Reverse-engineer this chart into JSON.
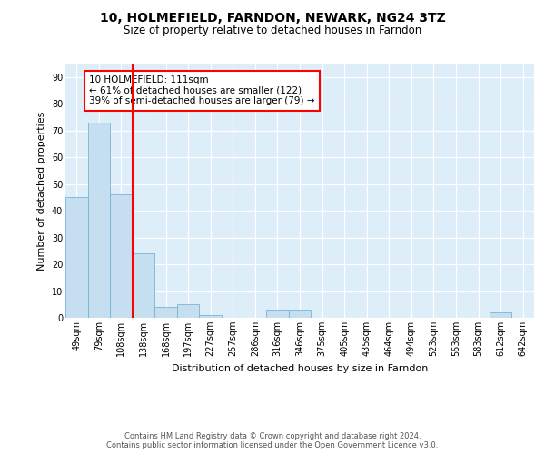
{
  "title": "10, HOLMEFIELD, FARNDON, NEWARK, NG24 3TZ",
  "subtitle": "Size of property relative to detached houses in Farndon",
  "xlabel": "Distribution of detached houses by size in Farndon",
  "ylabel": "Number of detached properties",
  "bin_labels": [
    "49sqm",
    "79sqm",
    "108sqm",
    "138sqm",
    "168sqm",
    "197sqm",
    "227sqm",
    "257sqm",
    "286sqm",
    "316sqm",
    "346sqm",
    "375sqm",
    "405sqm",
    "435sqm",
    "464sqm",
    "494sqm",
    "523sqm",
    "553sqm",
    "583sqm",
    "612sqm",
    "642sqm"
  ],
  "bar_values": [
    45,
    73,
    46,
    24,
    4,
    5,
    1,
    0,
    0,
    3,
    3,
    0,
    0,
    0,
    0,
    0,
    0,
    0,
    0,
    2,
    0
  ],
  "bar_color": "#c6dff0",
  "bar_edgecolor": "#7ab3d4",
  "ref_line_index": 2,
  "ref_line_color": "red",
  "annotation_text": "10 HOLMEFIELD: 111sqm\n← 61% of detached houses are smaller (122)\n39% of semi-detached houses are larger (79) →",
  "annotation_box_color": "white",
  "annotation_box_edgecolor": "red",
  "ylim": [
    0,
    95
  ],
  "yticks": [
    0,
    10,
    20,
    30,
    40,
    50,
    60,
    70,
    80,
    90
  ],
  "footer": "Contains HM Land Registry data © Crown copyright and database right 2024.\nContains public sector information licensed under the Open Government Licence v3.0.",
  "bg_color": "#ddeef8",
  "title_fontsize": 10,
  "subtitle_fontsize": 8.5,
  "axis_label_fontsize": 8,
  "tick_fontsize": 7,
  "annotation_fontsize": 7.5,
  "footer_fontsize": 6
}
